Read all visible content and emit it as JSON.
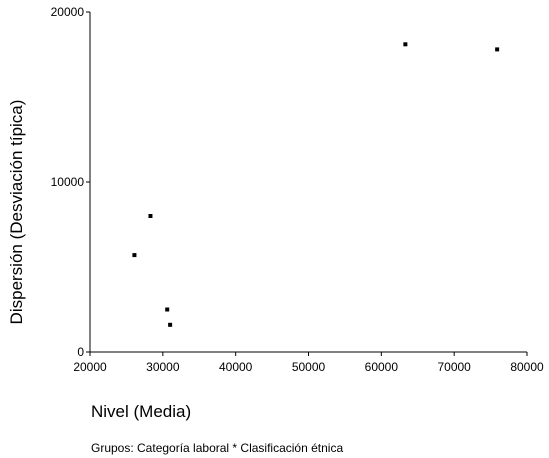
{
  "chart_data": {
    "type": "scatter",
    "title": "",
    "xlabel": "Nivel (Media)",
    "ylabel": "Dispersión (Desviación típica)",
    "footnote": "Grupos: Categoría laboral * Clasificación étnica",
    "xlim": [
      20000,
      80000
    ],
    "ylim": [
      0,
      20000
    ],
    "xticks": [
      20000,
      30000,
      40000,
      50000,
      60000,
      70000,
      80000
    ],
    "yticks": [
      0,
      10000,
      20000
    ],
    "grid": false,
    "legend": "none",
    "marker_color": "#000000",
    "points": [
      {
        "x": 26100,
        "y": 5700
      },
      {
        "x": 28300,
        "y": 8000
      },
      {
        "x": 30600,
        "y": 2500
      },
      {
        "x": 31000,
        "y": 1600
      },
      {
        "x": 63300,
        "y": 18100
      },
      {
        "x": 75900,
        "y": 17800
      }
    ]
  }
}
